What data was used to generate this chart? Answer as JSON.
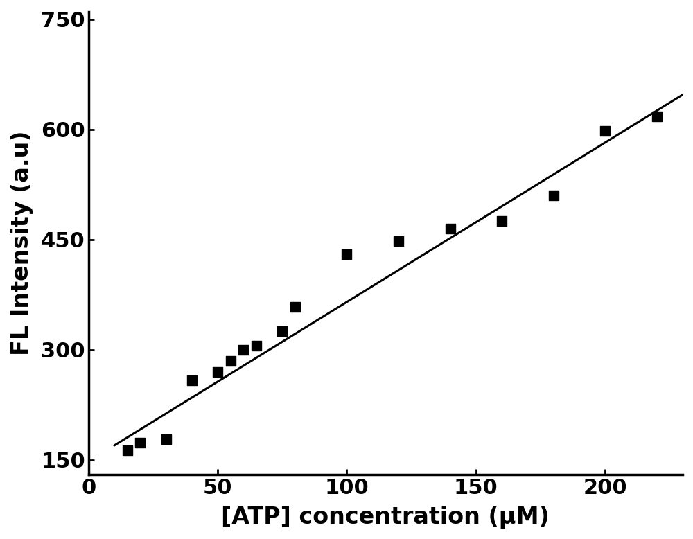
{
  "x_data": [
    15,
    20,
    30,
    40,
    50,
    55,
    60,
    65,
    75,
    80,
    100,
    120,
    140,
    160,
    180,
    200,
    220
  ],
  "y_data": [
    163,
    173,
    178,
    258,
    270,
    285,
    300,
    305,
    325,
    358,
    430,
    448,
    465,
    475,
    510,
    598,
    618
  ],
  "fit_x": [
    10,
    230
  ],
  "fit_slope": 2.17,
  "fit_intercept": 148,
  "xlabel": "[ATP] concentration (μM)",
  "ylabel": "FL Intensity (a.u)",
  "xlim": [
    0,
    230
  ],
  "ylim": [
    130,
    760
  ],
  "xticks": [
    0,
    50,
    100,
    150,
    200
  ],
  "yticks": [
    150,
    300,
    450,
    600,
    750
  ],
  "marker_color": "#000000",
  "line_color": "#000000",
  "background_color": "#ffffff",
  "marker_size": 110,
  "line_width": 2.2,
  "tick_fontsize": 22,
  "label_fontsize": 24
}
